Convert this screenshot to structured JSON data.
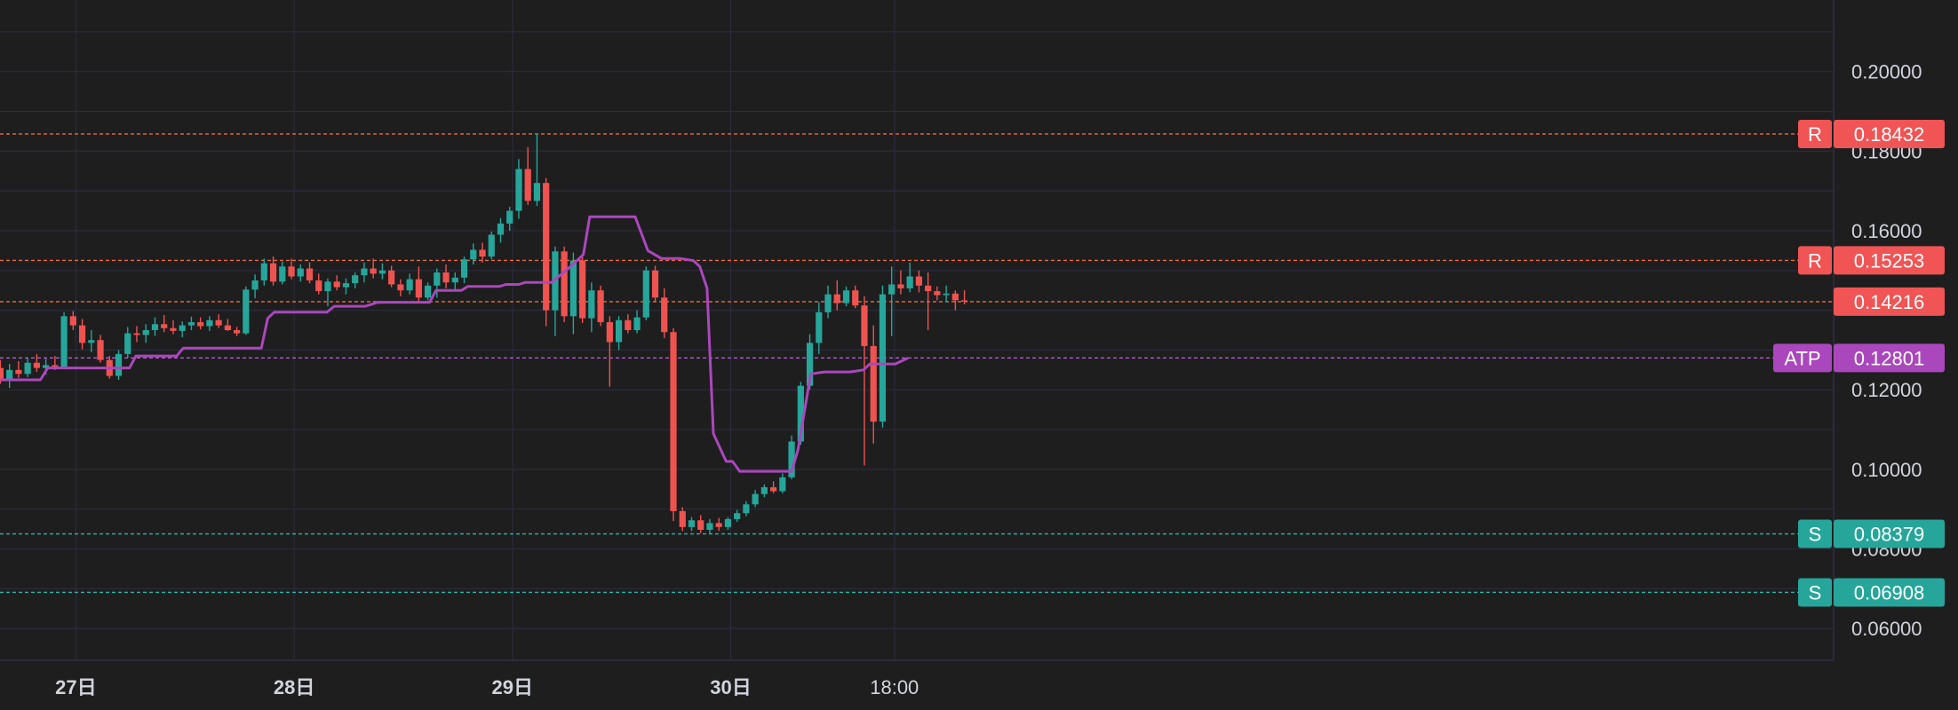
{
  "chart_data": {
    "type": "candlestick",
    "title": "",
    "xlabel": "",
    "ylabel": "",
    "ylim": [
      0.052,
      0.218
    ],
    "grid": true,
    "y_ticks": [
      "0.06000",
      "0.08000",
      "0.10000",
      "0.12000",
      "0.16000",
      "0.18000",
      "0.20000"
    ],
    "y_tick_values": [
      0.06,
      0.08,
      0.1,
      0.12,
      0.16,
      0.18,
      0.2
    ],
    "x_ticks": [
      {
        "label": "27日",
        "bold": true,
        "hour": 0
      },
      {
        "label": "28日",
        "bold": true,
        "hour": 24
      },
      {
        "label": "29日",
        "bold": true,
        "hour": 48
      },
      {
        "label": "30日",
        "bold": true,
        "hour": 72
      },
      {
        "label": "18:00",
        "bold": false,
        "hour": 90
      }
    ],
    "x_start_hour": -8.3,
    "bar_hours": 1,
    "levels": [
      {
        "tag": "R",
        "label": "0.18432",
        "value": 0.18432,
        "color": "#f05454",
        "line_color": "#f0683c"
      },
      {
        "tag": "R",
        "label": "0.15253",
        "value": 0.15253,
        "color": "#f05454",
        "line_color": "#f0683c"
      },
      {
        "tag": "",
        "label": "0.14216",
        "value": 0.14216,
        "color": "#f05454",
        "line_color": "#f0683c"
      },
      {
        "tag": "ATP",
        "label": "0.12801",
        "value": 0.12801,
        "color": "#ab47bc",
        "line_color": "#b05ad0"
      },
      {
        "tag": "S",
        "label": "0.08379",
        "value": 0.08379,
        "color": "#26a69a",
        "line_color": "#2bb5a5"
      },
      {
        "tag": "S",
        "label": "0.06908",
        "value": 0.06908,
        "color": "#26a69a",
        "line_color": "#2bb5a5"
      }
    ],
    "colors": {
      "up": "#26a69a",
      "down": "#ef5350",
      "atp": "#ab47bc",
      "grid": "#2b2b3b",
      "background": "#1e1e1f"
    },
    "candles_ohlc": [
      [
        0.1255,
        0.1275,
        0.1215,
        0.1225
      ],
      [
        0.1225,
        0.1265,
        0.1205,
        0.125
      ],
      [
        0.125,
        0.1272,
        0.123,
        0.124
      ],
      [
        0.124,
        0.128,
        0.1232,
        0.1268
      ],
      [
        0.1268,
        0.129,
        0.1245,
        0.1255
      ],
      [
        0.1255,
        0.1278,
        0.1238,
        0.1262
      ],
      [
        0.1262,
        0.1285,
        0.125,
        0.1258
      ],
      [
        0.1258,
        0.1395,
        0.1252,
        0.1385
      ],
      [
        0.1385,
        0.1398,
        0.135,
        0.1362
      ],
      [
        0.1362,
        0.1378,
        0.1302,
        0.1318
      ],
      [
        0.1318,
        0.135,
        0.1295,
        0.1325
      ],
      [
        0.1325,
        0.1338,
        0.1268,
        0.1275
      ],
      [
        0.1275,
        0.1285,
        0.1228,
        0.1235
      ],
      [
        0.1235,
        0.13,
        0.1225,
        0.129
      ],
      [
        0.129,
        0.1358,
        0.128,
        0.1342
      ],
      [
        0.1342,
        0.136,
        0.132,
        0.1338
      ],
      [
        0.1338,
        0.1365,
        0.1318,
        0.135
      ],
      [
        0.135,
        0.1382,
        0.1335,
        0.1365
      ],
      [
        0.1365,
        0.1388,
        0.1345,
        0.1355
      ],
      [
        0.1355,
        0.1375,
        0.134,
        0.1348
      ],
      [
        0.1348,
        0.1372,
        0.1332,
        0.1362
      ],
      [
        0.1362,
        0.1384,
        0.135,
        0.137
      ],
      [
        0.137,
        0.1382,
        0.1352,
        0.136
      ],
      [
        0.136,
        0.1385,
        0.1348,
        0.1375
      ],
      [
        0.1375,
        0.139,
        0.1355,
        0.1362
      ],
      [
        0.1362,
        0.1378,
        0.1348,
        0.135
      ],
      [
        0.135,
        0.1358,
        0.1335,
        0.1342
      ],
      [
        0.1342,
        0.146,
        0.1338,
        0.1452
      ],
      [
        0.1452,
        0.149,
        0.143,
        0.1475
      ],
      [
        0.1475,
        0.153,
        0.1462,
        0.1518
      ],
      [
        0.1518,
        0.1535,
        0.1462,
        0.1472
      ],
      [
        0.1472,
        0.1522,
        0.1465,
        0.151
      ],
      [
        0.151,
        0.153,
        0.1478,
        0.1485
      ],
      [
        0.1485,
        0.1515,
        0.1472,
        0.1505
      ],
      [
        0.1505,
        0.152,
        0.1468,
        0.1475
      ],
      [
        0.1475,
        0.1492,
        0.144,
        0.1448
      ],
      [
        0.1448,
        0.148,
        0.141,
        0.1472
      ],
      [
        0.1472,
        0.1488,
        0.145,
        0.1458
      ],
      [
        0.1458,
        0.148,
        0.144,
        0.1468
      ],
      [
        0.1468,
        0.1495,
        0.1455,
        0.1488
      ],
      [
        0.1488,
        0.152,
        0.147,
        0.1505
      ],
      [
        0.1505,
        0.153,
        0.148,
        0.1492
      ],
      [
        0.1492,
        0.1518,
        0.1478,
        0.15
      ],
      [
        0.15,
        0.1512,
        0.1458,
        0.1465
      ],
      [
        0.1465,
        0.1478,
        0.1435,
        0.145
      ],
      [
        0.145,
        0.1492,
        0.144,
        0.1478
      ],
      [
        0.1478,
        0.151,
        0.142,
        0.1432
      ],
      [
        0.1432,
        0.147,
        0.1425,
        0.1462
      ],
      [
        0.1462,
        0.1505,
        0.1432,
        0.1495
      ],
      [
        0.1495,
        0.1515,
        0.1455,
        0.147
      ],
      [
        0.147,
        0.1495,
        0.145,
        0.1482
      ],
      [
        0.1482,
        0.1535,
        0.1468,
        0.1528
      ],
      [
        0.1528,
        0.1568,
        0.1515,
        0.1552
      ],
      [
        0.1552,
        0.157,
        0.152,
        0.1535
      ],
      [
        0.1535,
        0.1598,
        0.1528,
        0.159
      ],
      [
        0.159,
        0.1632,
        0.157,
        0.1618
      ],
      [
        0.1618,
        0.166,
        0.16,
        0.165
      ],
      [
        0.165,
        0.178,
        0.163,
        0.1755
      ],
      [
        0.1755,
        0.181,
        0.1665,
        0.1675
      ],
      [
        0.1675,
        0.1843,
        0.1662,
        0.172
      ],
      [
        0.172,
        0.1732,
        0.136,
        0.14
      ],
      [
        0.14,
        0.156,
        0.1335,
        0.1548
      ],
      [
        0.1548,
        0.156,
        0.137,
        0.1385
      ],
      [
        0.1385,
        0.1545,
        0.134,
        0.1525
      ],
      [
        0.1525,
        0.1535,
        0.1368,
        0.138
      ],
      [
        0.138,
        0.147,
        0.1345,
        0.145
      ],
      [
        0.145,
        0.1462,
        0.136,
        0.137
      ],
      [
        0.137,
        0.1385,
        0.1208,
        0.132
      ],
      [
        0.132,
        0.1385,
        0.13,
        0.1375
      ],
      [
        0.1375,
        0.139,
        0.1342,
        0.135
      ],
      [
        0.135,
        0.14,
        0.1342,
        0.1382
      ],
      [
        0.1382,
        0.151,
        0.1375,
        0.15
      ],
      [
        0.15,
        0.1512,
        0.142,
        0.1432
      ],
      [
        0.1432,
        0.1455,
        0.133,
        0.1345
      ],
      [
        0.1345,
        0.1355,
        0.087,
        0.0895
      ],
      [
        0.0895,
        0.0905,
        0.0845,
        0.0855
      ],
      [
        0.0855,
        0.088,
        0.0845,
        0.0872
      ],
      [
        0.0872,
        0.0885,
        0.084,
        0.0848
      ],
      [
        0.0848,
        0.0875,
        0.0838,
        0.0865
      ],
      [
        0.0865,
        0.0878,
        0.0845,
        0.0855
      ],
      [
        0.0855,
        0.088,
        0.0848,
        0.0875
      ],
      [
        0.0875,
        0.0898,
        0.0868,
        0.089
      ],
      [
        0.089,
        0.092,
        0.0882,
        0.0912
      ],
      [
        0.0912,
        0.0948,
        0.0905,
        0.0938
      ],
      [
        0.0938,
        0.0962,
        0.093,
        0.0955
      ],
      [
        0.0955,
        0.097,
        0.094,
        0.0945
      ],
      [
        0.0945,
        0.099,
        0.094,
        0.098
      ],
      [
        0.098,
        0.1085,
        0.0975,
        0.107
      ],
      [
        0.107,
        0.122,
        0.1062,
        0.121
      ],
      [
        0.121,
        0.134,
        0.12,
        0.1318
      ],
      [
        0.1318,
        0.142,
        0.129,
        0.1395
      ],
      [
        0.1395,
        0.1462,
        0.138,
        0.144
      ],
      [
        0.144,
        0.1475,
        0.14,
        0.1418
      ],
      [
        0.1418,
        0.146,
        0.141,
        0.145
      ],
      [
        0.145,
        0.1462,
        0.1405,
        0.1412
      ],
      [
        0.1412,
        0.1435,
        0.101,
        0.131
      ],
      [
        0.131,
        0.1362,
        0.1065,
        0.112
      ],
      [
        0.112,
        0.1462,
        0.1105,
        0.144
      ],
      [
        0.144,
        0.151,
        0.1335,
        0.1465
      ],
      [
        0.1465,
        0.15,
        0.144,
        0.1455
      ],
      [
        0.1455,
        0.152,
        0.1445,
        0.1485
      ],
      [
        0.1485,
        0.15,
        0.1445,
        0.1462
      ],
      [
        0.1462,
        0.1495,
        0.135,
        0.1448
      ],
      [
        0.1448,
        0.146,
        0.1425,
        0.1438
      ],
      [
        0.1438,
        0.1462,
        0.142,
        0.1442
      ],
      [
        0.1442,
        0.145,
        0.14,
        0.1425
      ],
      [
        0.1425,
        0.145,
        0.1415,
        0.1422
      ]
    ],
    "atp_points": [
      [
        -8.3,
        0.1225
      ],
      [
        -3.9,
        0.1225
      ],
      [
        -3.1,
        0.1255
      ],
      [
        0.7,
        0.1255
      ],
      [
        1.4,
        0.1255
      ],
      [
        5.9,
        0.1255
      ],
      [
        6.6,
        0.1285
      ],
      [
        11.1,
        0.1285
      ],
      [
        11.8,
        0.1305
      ],
      [
        20.4,
        0.1305
      ],
      [
        21.1,
        0.138
      ],
      [
        21.8,
        0.1395
      ],
      [
        27.6,
        0.1395
      ],
      [
        28.4,
        0.141
      ],
      [
        31.8,
        0.141
      ],
      [
        32.5,
        0.1415
      ],
      [
        33.2,
        0.142
      ],
      [
        38.9,
        0.142
      ],
      [
        39.6,
        0.145
      ],
      [
        42.4,
        0.145
      ],
      [
        43.1,
        0.146
      ],
      [
        46.6,
        0.146
      ],
      [
        47.3,
        0.1465
      ],
      [
        48.7,
        0.1465
      ],
      [
        49.4,
        0.147
      ],
      [
        52.3,
        0.147
      ],
      [
        54.4,
        0.151
      ],
      [
        55.8,
        0.154
      ],
      [
        56.5,
        0.1635
      ],
      [
        61.5,
        0.1635
      ],
      [
        62.9,
        0.155
      ],
      [
        64.4,
        0.153
      ],
      [
        66.5,
        0.153
      ],
      [
        67.9,
        0.1525
      ],
      [
        68.6,
        0.151
      ],
      [
        69.4,
        0.1455
      ],
      [
        70.1,
        0.109
      ],
      [
        71.5,
        0.102
      ],
      [
        72.2,
        0.102
      ],
      [
        73.0,
        0.0995
      ],
      [
        76.6,
        0.0995
      ],
      [
        78.0,
        0.0995
      ],
      [
        78.7,
        0.0995
      ],
      [
        79.4,
        0.105
      ],
      [
        80.8,
        0.124
      ],
      [
        82.3,
        0.1245
      ],
      [
        84.4,
        0.1245
      ],
      [
        85.1,
        0.1245
      ],
      [
        86.6,
        0.125
      ],
      [
        87.3,
        0.1265
      ],
      [
        89.4,
        0.1265
      ],
      [
        90.1,
        0.1265
      ],
      [
        91.5,
        0.128
      ]
    ]
  }
}
